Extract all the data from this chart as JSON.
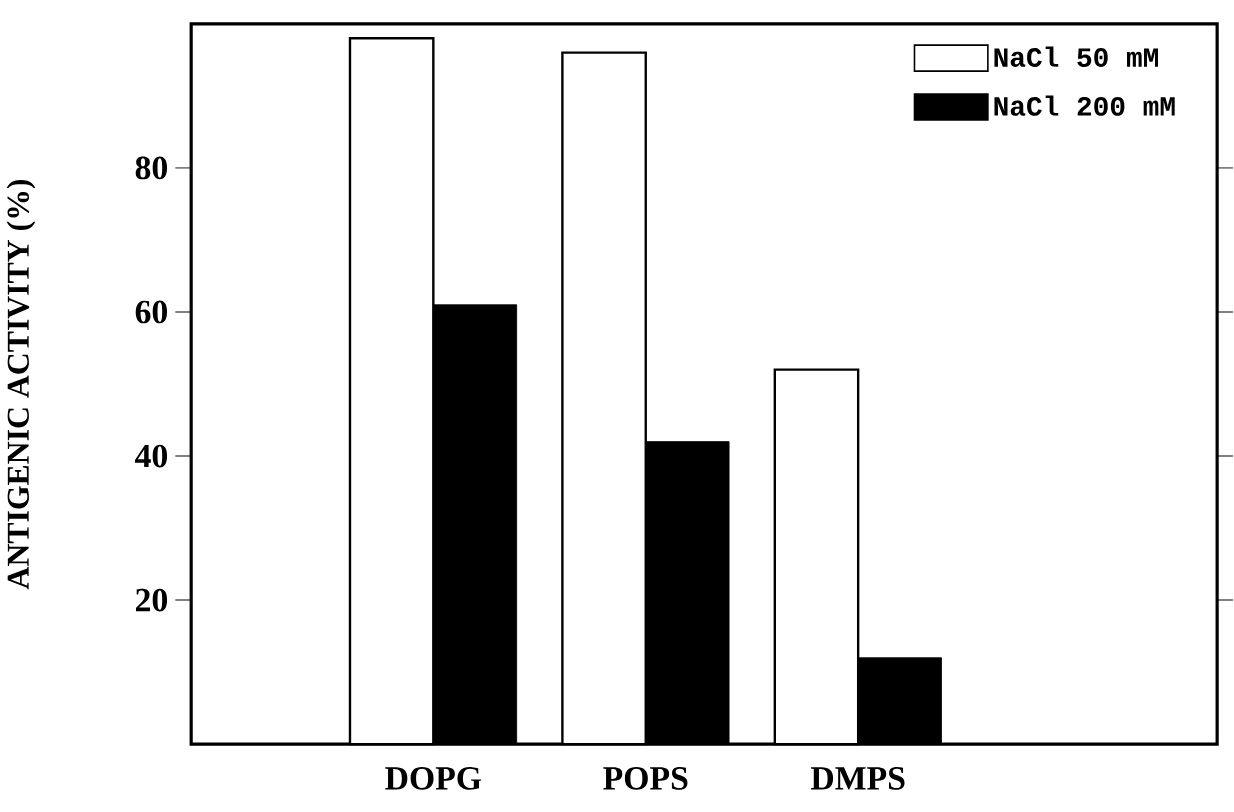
{
  "chart_data": {
    "type": "bar",
    "ylabel": "ANTIGENIC ACTIVITY (%)",
    "categories": [
      "DOPG",
      "POPS",
      "DMPS"
    ],
    "series": [
      {
        "name": "NaCl 50 mM",
        "color": "#000000",
        "values": [
          98,
          96,
          52
        ]
      },
      {
        "name": "NaCl 200 mM",
        "color": "#000000",
        "values": [
          61,
          42,
          12
        ]
      }
    ],
    "ylim": [
      0,
      100
    ],
    "yticks": [
      20,
      40,
      60,
      80
    ],
    "grid": false,
    "legend": "top right"
  }
}
